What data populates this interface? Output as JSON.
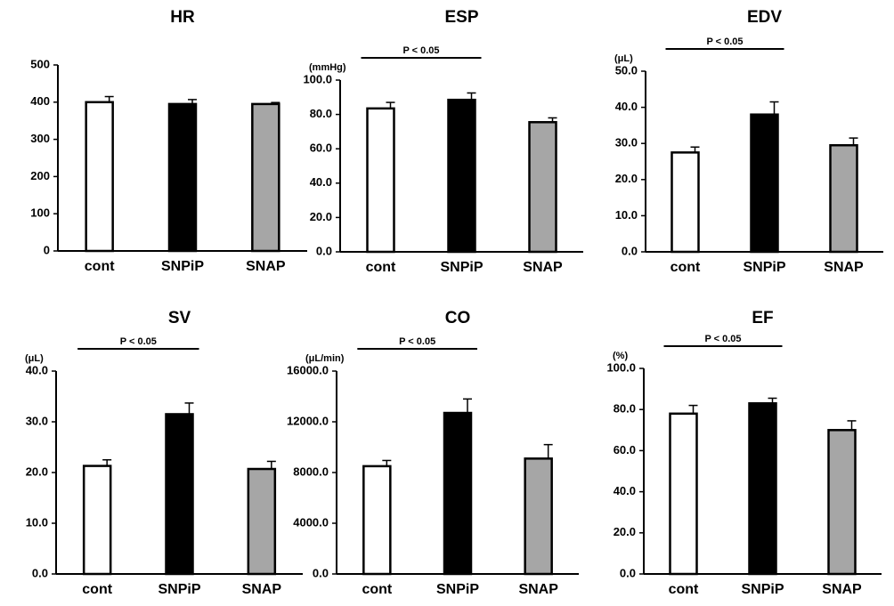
{
  "chart_data": [
    {
      "type": "bar",
      "title": "HR",
      "categories": [
        "cont",
        "SNPiP",
        "SNAP"
      ],
      "values": [
        400,
        395,
        395
      ],
      "errors": [
        15,
        12,
        4
      ],
      "colors": [
        "#ffffff",
        "#000000",
        "#a6a6a6"
      ],
      "ylim": [
        0,
        500
      ],
      "yticks": [
        0,
        100,
        200,
        300,
        400,
        500
      ]
    },
    {
      "type": "bar",
      "title": "ESP",
      "y_label": "(mmHg)",
      "annotation": "P < 0.05",
      "categories": [
        "cont",
        "SNPiP",
        "SNAP"
      ],
      "values": [
        83.5,
        88.5,
        75.5
      ],
      "errors": [
        3.5,
        4,
        2.5
      ],
      "colors": [
        "#ffffff",
        "#000000",
        "#a6a6a6"
      ],
      "ylim": [
        0,
        100
      ],
      "yticks": [
        {
          "value": 0,
          "label": "0.0"
        },
        {
          "value": 20,
          "label": "20.0"
        },
        {
          "value": 40,
          "label": "40.0"
        },
        {
          "value": 60,
          "label": "60.0"
        },
        {
          "value": 80,
          "label": "80.0"
        },
        {
          "value": 100,
          "label": "100.0"
        }
      ]
    },
    {
      "type": "bar",
      "title": "EDV",
      "y_label": "(μL)",
      "annotation": "P < 0.05",
      "categories": [
        "cont",
        "SNPiP",
        "SNAP"
      ],
      "values": [
        27.5,
        38,
        29.5
      ],
      "errors": [
        1.5,
        3.5,
        2
      ],
      "colors": [
        "#ffffff",
        "#000000",
        "#a6a6a6"
      ],
      "ylim": [
        0,
        50
      ],
      "yticks": [
        {
          "value": 0,
          "label": "0.0"
        },
        {
          "value": 10,
          "label": "10.0"
        },
        {
          "value": 20,
          "label": "20.0"
        },
        {
          "value": 30,
          "label": "30.0"
        },
        {
          "value": 40,
          "label": "40.0"
        },
        {
          "value": 50,
          "label": "50.0"
        }
      ]
    },
    {
      "type": "bar",
      "title": "SV",
      "y_label": "(μL)",
      "annotation": "P < 0.05",
      "categories": [
        "cont",
        "SNPiP",
        "SNAP"
      ],
      "values": [
        21.3,
        31.5,
        20.7
      ],
      "errors": [
        1.2,
        2.2,
        1.5
      ],
      "colors": [
        "#ffffff",
        "#000000",
        "#a6a6a6"
      ],
      "ylim": [
        0,
        40
      ],
      "yticks": [
        {
          "value": 0,
          "label": "0.0"
        },
        {
          "value": 10,
          "label": "10.0"
        },
        {
          "value": 20,
          "label": "20.0"
        },
        {
          "value": 30,
          "label": "30.0"
        },
        {
          "value": 40,
          "label": "40.0"
        }
      ]
    },
    {
      "type": "bar",
      "title": "CO",
      "y_label": "(μL/min)",
      "annotation": "P < 0.05",
      "categories": [
        "cont",
        "SNPiP",
        "SNAP"
      ],
      "values": [
        8500,
        12700,
        9100
      ],
      "errors": [
        450,
        1100,
        1100
      ],
      "colors": [
        "#ffffff",
        "#000000",
        "#a6a6a6"
      ],
      "ylim": [
        0,
        16000
      ],
      "yticks": [
        {
          "value": 0,
          "label": "0.0"
        },
        {
          "value": 4000,
          "label": "4000.0"
        },
        {
          "value": 8000,
          "label": "8000.0"
        },
        {
          "value": 12000,
          "label": "12000.0"
        },
        {
          "value": 16000,
          "label": "16000.0"
        }
      ]
    },
    {
      "type": "bar",
      "title": "EF",
      "y_label": "(%)",
      "annotation": "P < 0.05",
      "categories": [
        "cont",
        "SNPiP",
        "SNAP"
      ],
      "values": [
        78,
        83,
        70
      ],
      "errors": [
        4,
        2.5,
        4.5
      ],
      "colors": [
        "#ffffff",
        "#000000",
        "#a6a6a6"
      ],
      "ylim": [
        0,
        100
      ],
      "yticks": [
        {
          "value": 0,
          "label": "0.0"
        },
        {
          "value": 20,
          "label": "20.0"
        },
        {
          "value": 40,
          "label": "40.0"
        },
        {
          "value": 60,
          "label": "60.0"
        },
        {
          "value": 80,
          "label": "80.0"
        },
        {
          "value": 100,
          "label": "100.0"
        }
      ]
    }
  ]
}
